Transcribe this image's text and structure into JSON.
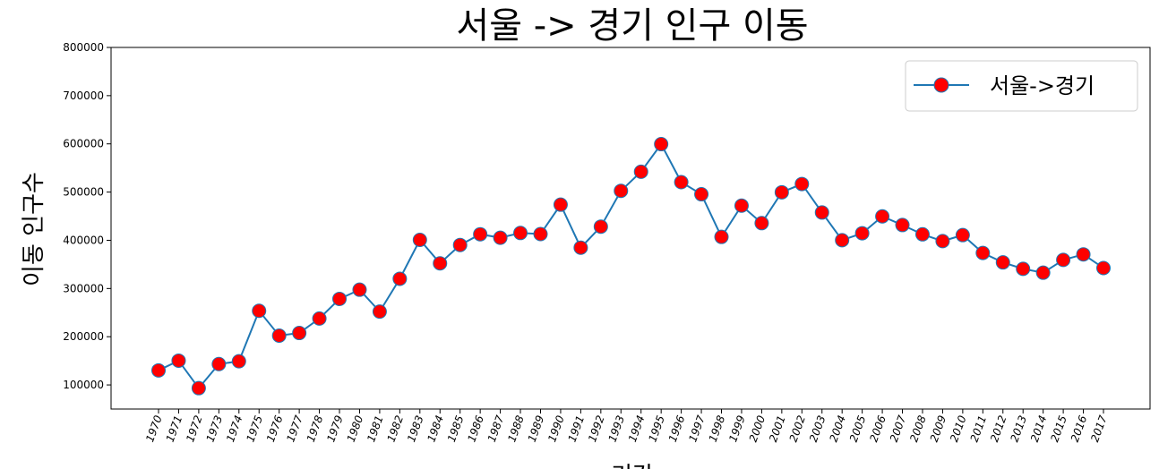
{
  "chart_data": {
    "type": "line",
    "title": "서울 -> 경기 인구 이동",
    "xlabel": "기간",
    "ylabel": "이동 인구수",
    "ylim": [
      50000,
      800000
    ],
    "yticks": [
      100000,
      200000,
      300000,
      400000,
      500000,
      600000,
      700000,
      800000
    ],
    "grid": false,
    "legend_position": "top-right",
    "x": [
      "1970",
      "1971",
      "1972",
      "1973",
      "1974",
      "1975",
      "1976",
      "1977",
      "1978",
      "1979",
      "1980",
      "1981",
      "1982",
      "1983",
      "1984",
      "1985",
      "1986",
      "1987",
      "1988",
      "1989",
      "1990",
      "1991",
      "1992",
      "1993",
      "1994",
      "1995",
      "1996",
      "1997",
      "1998",
      "1999",
      "2000",
      "2001",
      "2002",
      "2003",
      "2004",
      "2005",
      "2006",
      "2007",
      "2008",
      "2009",
      "2010",
      "2011",
      "2012",
      "2013",
      "2014",
      "2015",
      "2016",
      "2017"
    ],
    "series": [
      {
        "name": "서울->경기",
        "values": [
          130149,
          150313,
          93333,
          143234,
          149045,
          253705,
          202276,
          207722,
          237684,
          278411,
          297539,
          252073,
          320174,
          400875,
          352238,
          390265,
          412535,
          405220,
          415174,
          412933,
          473889,
          384714,
          428344,
          502584,
          542204,
          599411,
          520566,
          495454,
          407050,
          471841,
          435573,
          499575,
          516765,
          457656,
          400206,
          414621,
          449632,
          431637,
          412408,
          398282,
          410735,
          373771,
          354135,
          340801,
          332785,
          359337,
          370760,
          342433
        ],
        "line_color": "#1f77b4",
        "marker_face_color": "#ff0000",
        "marker_edge_color": "#1f77b4"
      }
    ]
  }
}
